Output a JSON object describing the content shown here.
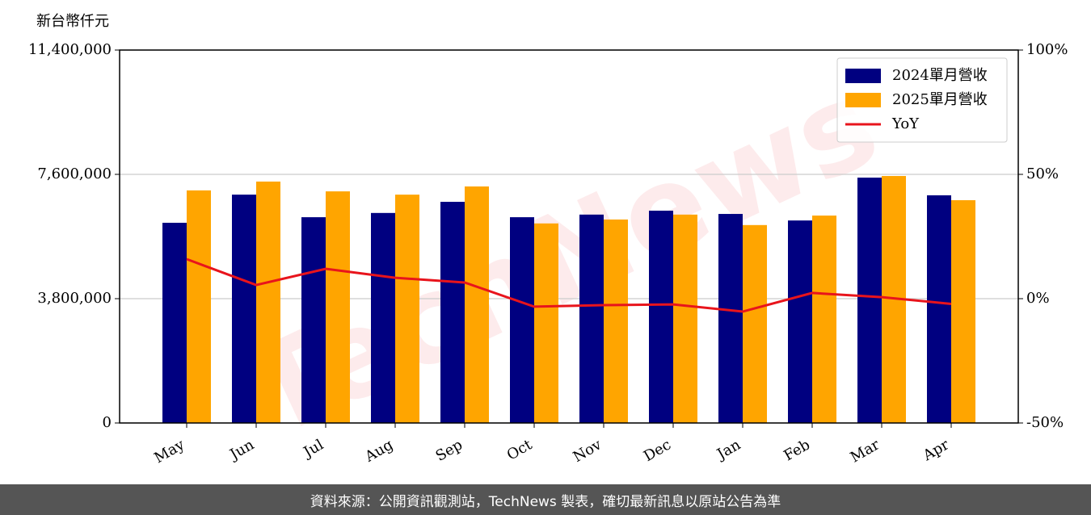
{
  "chart_data": {
    "type": "bar",
    "y_label": "新台幣仟元",
    "watermark": "TechNews",
    "categories": [
      "May",
      "Jun",
      "Jul",
      "Aug",
      "Sep",
      "Oct",
      "Nov",
      "Dec",
      "Jan",
      "Feb",
      "Mar",
      "Apr"
    ],
    "series": [
      {
        "name": "2024單月營收",
        "color": "#000080",
        "type": "bar",
        "values": [
          6120000,
          6980000,
          6290000,
          6420000,
          6760000,
          6290000,
          6370000,
          6490000,
          6390000,
          6190000,
          7500000,
          6960000
        ]
      },
      {
        "name": "2025單月營收",
        "color": "#ffa500",
        "type": "bar",
        "values": [
          7110000,
          7380000,
          7080000,
          6980000,
          7230000,
          6100000,
          6220000,
          6370000,
          6050000,
          6340000,
          7550000,
          6810000
        ]
      },
      {
        "name": "YoY",
        "color": "#e8141c",
        "type": "line",
        "axis": "y2",
        "values": [
          15.9,
          5.5,
          12.0,
          8.4,
          6.5,
          -3.2,
          -2.6,
          -2.3,
          -5.2,
          2.3,
          0.6,
          -2.1
        ]
      }
    ],
    "ylim": [
      0,
      11400000
    ],
    "yticks": [
      0,
      {
        "value": 3800000,
        "label": "3,800,000"
      },
      {
        "value": 7600000,
        "label": "7,600,000"
      },
      {
        "value": 11400000,
        "label": "11,400,000"
      }
    ],
    "y2lim": [
      -50,
      100
    ],
    "y2ticks": [
      {
        "value": -50,
        "label": "-50%"
      },
      {
        "value": 0,
        "label": "0%"
      },
      {
        "value": 50,
        "label": "50%"
      },
      {
        "value": 100,
        "label": "100%"
      }
    ],
    "grid": true,
    "legend": "upper right"
  },
  "footer": "資料來源：公開資訊觀測站，TechNews 製表，確切最新訊息以原站公告為準"
}
